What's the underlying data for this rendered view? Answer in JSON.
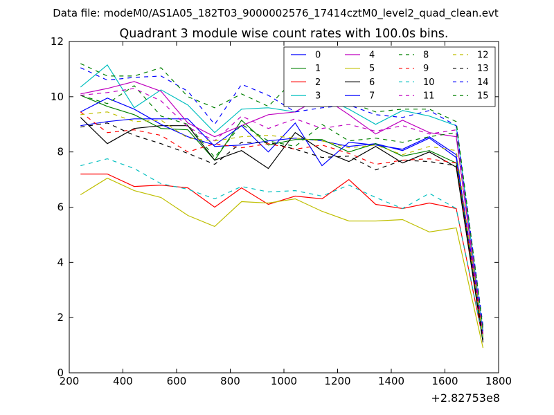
{
  "header": {
    "data_file": "Data file: modeM0/AS1A05_182T03_9000002576_17414cztM0_level2_quad_clean.evt"
  },
  "chart_data": {
    "type": "line",
    "title": "Quadrant 3 module wise count rates with 100.0s bins.",
    "xlabel": "",
    "ylabel": "",
    "x_offset_label": "+2.82753e8",
    "xlim": [
      200,
      1800
    ],
    "ylim": [
      0,
      12
    ],
    "xticks": [
      200,
      400,
      600,
      800,
      1000,
      1200,
      1400,
      1600,
      1800
    ],
    "yticks": [
      0,
      2,
      4,
      6,
      8,
      10,
      12
    ],
    "grid": false,
    "legend_position": "top-right",
    "legend_columns": 4,
    "x": [
      242,
      342,
      442,
      542,
      642,
      742,
      842,
      942,
      1042,
      1142,
      1242,
      1342,
      1442,
      1542,
      1642,
      1742
    ],
    "series": [
      {
        "name": "0",
        "color": "#0000ff",
        "dash": "solid",
        "values": [
          8.95,
          9.1,
          9.2,
          9.2,
          9.2,
          8.2,
          8.25,
          8.4,
          8.5,
          8.4,
          8.2,
          8.3,
          8.05,
          8.5,
          7.8,
          1.5
        ]
      },
      {
        "name": "1",
        "color": "#008000",
        "dash": "solid",
        "values": [
          10.05,
          9.65,
          9.35,
          8.85,
          8.8,
          7.7,
          9.15,
          8.25,
          8.45,
          8.45,
          8.0,
          8.3,
          7.85,
          8.05,
          7.6,
          1.3
        ]
      },
      {
        "name": "2",
        "color": "#ff0000",
        "dash": "solid",
        "values": [
          7.2,
          7.2,
          6.75,
          6.8,
          6.7,
          6.0,
          6.7,
          6.1,
          6.4,
          6.3,
          7.0,
          6.1,
          5.95,
          6.15,
          5.95,
          1.2
        ]
      },
      {
        "name": "3",
        "color": "#00bfbf",
        "dash": "solid",
        "values": [
          10.35,
          11.15,
          9.6,
          10.25,
          9.7,
          8.7,
          9.55,
          9.6,
          9.45,
          10.0,
          9.55,
          9.0,
          9.5,
          9.3,
          8.95,
          1.4
        ]
      },
      {
        "name": "4",
        "color": "#bf00bf",
        "dash": "solid",
        "values": [
          10.1,
          10.3,
          10.55,
          10.2,
          9.05,
          8.55,
          8.95,
          9.35,
          9.45,
          10.0,
          9.35,
          8.65,
          9.15,
          8.7,
          8.55,
          1.3
        ]
      },
      {
        "name": "5",
        "color": "#bfbf00",
        "dash": "solid",
        "values": [
          6.45,
          7.05,
          6.6,
          6.35,
          5.7,
          5.3,
          6.2,
          6.15,
          6.3,
          5.85,
          5.5,
          5.5,
          5.55,
          5.1,
          5.25,
          0.9
        ]
      },
      {
        "name": "6",
        "color": "#000000",
        "dash": "solid",
        "values": [
          9.25,
          8.3,
          8.85,
          8.95,
          8.95,
          7.7,
          8.05,
          7.4,
          8.7,
          8.05,
          7.65,
          8.2,
          7.6,
          8.0,
          7.45,
          1.1
        ]
      },
      {
        "name": "7",
        "color": "#0000ff",
        "dash": "solid",
        "values": [
          9.45,
          9.95,
          9.55,
          9.0,
          8.55,
          8.25,
          8.95,
          8.0,
          9.05,
          7.5,
          8.35,
          8.25,
          8.1,
          8.55,
          7.9,
          1.35
        ]
      },
      {
        "name": "8",
        "color": "#008000",
        "dash": "dashed",
        "values": [
          10.05,
          9.75,
          10.4,
          9.3,
          9.0,
          7.8,
          9.0,
          8.4,
          8.2,
          9.0,
          8.4,
          8.5,
          8.35,
          8.55,
          8.7,
          1.5
        ]
      },
      {
        "name": "9",
        "color": "#ff0000",
        "dash": "dashed",
        "values": [
          9.45,
          8.7,
          8.8,
          8.6,
          8.0,
          8.3,
          8.15,
          8.3,
          8.1,
          8.25,
          7.95,
          7.55,
          7.7,
          7.75,
          7.6,
          1.3
        ]
      },
      {
        "name": "10",
        "color": "#00bfbf",
        "dash": "dashed",
        "values": [
          7.5,
          7.75,
          7.4,
          6.85,
          6.65,
          6.3,
          6.75,
          6.55,
          6.6,
          6.4,
          6.8,
          6.35,
          5.95,
          6.5,
          5.95,
          1.25
        ]
      },
      {
        "name": "11",
        "color": "#bf00bf",
        "dash": "dashed",
        "values": [
          10.05,
          10.15,
          10.3,
          9.85,
          8.9,
          8.4,
          9.3,
          8.85,
          9.2,
          8.85,
          9.0,
          8.75,
          8.95,
          8.65,
          8.8,
          1.4
        ]
      },
      {
        "name": "12",
        "color": "#bfbf00",
        "dash": "dashed",
        "values": [
          9.35,
          9.45,
          9.1,
          9.15,
          8.5,
          8.4,
          8.55,
          8.6,
          8.5,
          8.4,
          8.15,
          8.25,
          7.9,
          8.2,
          8.05,
          1.3
        ]
      },
      {
        "name": "13",
        "color": "#000000",
        "dash": "dashed",
        "values": [
          8.9,
          9.05,
          8.6,
          8.3,
          7.95,
          7.55,
          8.35,
          8.35,
          8.1,
          7.8,
          7.85,
          7.35,
          7.7,
          7.65,
          7.5,
          1.2
        ]
      },
      {
        "name": "14",
        "color": "#0000ff",
        "dash": "dashed",
        "values": [
          11.05,
          10.6,
          10.7,
          10.75,
          10.2,
          9.0,
          10.45,
          10.05,
          9.45,
          9.6,
          9.7,
          9.35,
          9.25,
          9.5,
          8.95,
          1.7
        ]
      },
      {
        "name": "15",
        "color": "#008000",
        "dash": "dashed",
        "values": [
          11.2,
          10.75,
          10.75,
          11.05,
          10.0,
          9.6,
          10.1,
          9.65,
          10.65,
          9.7,
          9.8,
          9.45,
          9.55,
          9.55,
          9.1,
          1.6
        ]
      }
    ]
  }
}
